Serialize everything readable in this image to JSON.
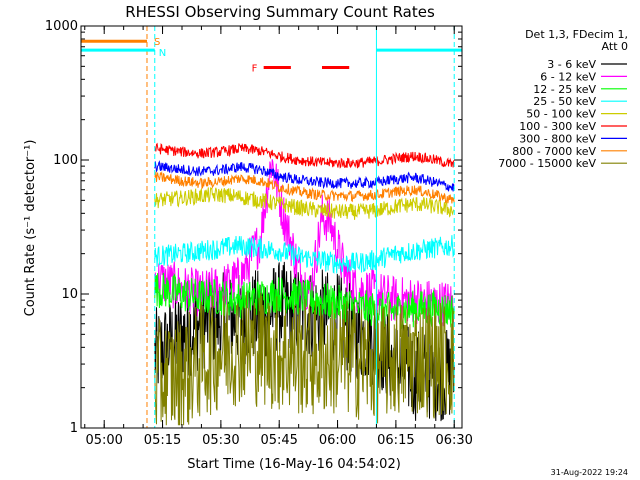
{
  "chart_data": {
    "type": "line",
    "title": "RHESSI Observing Summary Count Rates",
    "xlabel": "Start Time (16-May-16 04:54:02)",
    "ylabel": "Count Rate (s⁻¹ detector⁻¹)",
    "y_scale": "log",
    "ylim": [
      1,
      1000
    ],
    "xlim": [
      "04:54:02",
      "06:32:00"
    ],
    "y_ticks": [
      "1",
      "10",
      "100",
      "1000"
    ],
    "x_ticks": [
      "05:00",
      "05:15",
      "05:30",
      "05:45",
      "06:00",
      "06:15",
      "06:30"
    ],
    "legend_title": "Det 1,3, FDecim 1,\n Att 0",
    "legend_position": "right",
    "data_start": "05:13:00",
    "data_end": "06:30:00",
    "series": [
      {
        "name": "3 - 6 keV",
        "color": "#000000",
        "x": [
          "05:13",
          "05:20",
          "05:25",
          "05:30",
          "05:35",
          "05:40",
          "05:45",
          "05:50",
          "05:55",
          "06:00",
          "06:05",
          "06:10",
          "06:15",
          "06:20",
          "06:25",
          "06:30"
        ],
        "y": [
          3.5,
          5,
          6,
          6.5,
          6.5,
          7,
          8,
          7.5,
          7,
          6.5,
          5,
          4.5,
          3,
          2.5,
          2.5,
          2.5
        ]
      },
      {
        "name": "6 - 12 keV",
        "color": "#ff00ff",
        "x": [
          "05:13",
          "05:20",
          "05:25",
          "05:30",
          "05:35",
          "05:40",
          "05:43",
          "05:46",
          "05:50",
          "05:53",
          "05:56",
          "05:58",
          "06:02",
          "06:05",
          "06:10",
          "06:15",
          "06:20",
          "06:25",
          "06:30"
        ],
        "y": [
          13,
          11,
          10,
          11,
          13,
          25,
          100,
          40,
          15,
          10,
          38,
          35,
          14,
          11,
          10,
          9,
          9,
          8.5,
          8.5
        ]
      },
      {
        "name": "12 - 25 keV",
        "color": "#00ff00",
        "x": [
          "05:13",
          "05:20",
          "05:25",
          "05:30",
          "05:35",
          "05:40",
          "05:45",
          "05:50",
          "05:55",
          "06:00",
          "06:05",
          "06:10",
          "06:15",
          "06:20",
          "06:25",
          "06:30"
        ],
        "y": [
          11,
          10,
          9.5,
          9.5,
          9,
          9.5,
          10,
          9.5,
          9,
          8.5,
          8,
          7.5,
          7.5,
          7.8,
          7.8,
          7.5
        ]
      },
      {
        "name": "25 - 50 keV",
        "color": "#00ffff",
        "x": [
          "05:13",
          "05:20",
          "05:25",
          "05:30",
          "05:35",
          "05:40",
          "05:45",
          "05:50",
          "05:55",
          "06:00",
          "06:05",
          "06:10",
          "06:15",
          "06:20",
          "06:25",
          "06:30"
        ],
        "y": [
          19,
          20,
          21,
          22,
          23,
          22,
          21,
          19,
          18,
          17,
          17,
          18,
          20,
          21,
          22,
          23
        ]
      },
      {
        "name": "50 - 100 keV",
        "color": "#cccc00",
        "x": [
          "05:13",
          "05:20",
          "05:25",
          "05:30",
          "05:35",
          "05:40",
          "05:45",
          "05:50",
          "05:55",
          "06:00",
          "06:05",
          "06:10",
          "06:15",
          "06:20",
          "06:25",
          "06:30"
        ],
        "y": [
          50,
          52,
          54,
          55,
          53,
          50,
          47,
          44,
          42,
          41,
          41,
          42,
          45,
          47,
          45,
          42
        ]
      },
      {
        "name": "100 - 300 keV",
        "color": "#ff0000",
        "x": [
          "05:13",
          "05:20",
          "05:25",
          "05:30",
          "05:35",
          "05:40",
          "05:45",
          "05:50",
          "05:55",
          "06:00",
          "06:05",
          "06:10",
          "06:15",
          "06:20",
          "06:25",
          "06:30"
        ],
        "y": [
          122,
          115,
          112,
          115,
          122,
          117,
          107,
          100,
          96,
          95,
          95,
          98,
          103,
          107,
          100,
          92
        ]
      },
      {
        "name": "300 - 800 keV",
        "color": "#0000ff",
        "x": [
          "05:13",
          "05:20",
          "05:25",
          "05:30",
          "05:35",
          "05:40",
          "05:45",
          "05:50",
          "05:55",
          "06:00",
          "06:05",
          "06:10",
          "06:15",
          "06:20",
          "06:25",
          "06:30"
        ],
        "y": [
          90,
          85,
          82,
          84,
          89,
          85,
          76,
          71,
          68,
          67,
          67,
          68,
          72,
          74,
          68,
          62
        ]
      },
      {
        "name": "800 - 7000 keV",
        "color": "#ff8000",
        "x": [
          "05:13",
          "05:20",
          "05:25",
          "05:30",
          "05:35",
          "05:40",
          "05:45",
          "05:50",
          "05:55",
          "06:00",
          "06:05",
          "06:10",
          "06:15",
          "06:20",
          "06:25",
          "06:30"
        ],
        "y": [
          75,
          70,
          67,
          69,
          73,
          70,
          63,
          58,
          55,
          54,
          54,
          55,
          58,
          60,
          55,
          50
        ]
      },
      {
        "name": "7000 - 15000 keV",
        "color": "#808000",
        "x": [
          "05:13",
          "05:20",
          "05:25",
          "05:30",
          "05:35",
          "05:40",
          "05:45",
          "05:50",
          "05:55",
          "06:00",
          "06:05",
          "06:10",
          "06:15",
          "06:20",
          "06:25",
          "06:30"
        ],
        "y": [
          2.3,
          2.5,
          3.2,
          3.8,
          4.2,
          4.0,
          3.6,
          3.4,
          3.3,
          3.4,
          3.2,
          3.0,
          3.3,
          3.4,
          3.3,
          3.2
        ]
      }
    ],
    "flag_bars": [
      {
        "label": "S",
        "color": "#ff8000",
        "start": "04:54:02",
        "end": "05:11:00",
        "y": 770
      },
      {
        "label": "N",
        "color": "#00ffff",
        "start": "04:54:02",
        "end": "05:13:00",
        "y": 660
      },
      {
        "label": "N",
        "color": "#00ffff",
        "start": "06:10:00",
        "end": "06:32:00",
        "y": 660
      },
      {
        "label": "F",
        "color": "#ff0000",
        "start": "05:41:00",
        "end": "05:48:00",
        "y": 490
      },
      {
        "label": "F",
        "color": "#ff0000",
        "start": "05:56:00",
        "end": "06:03:00",
        "y": 490
      }
    ],
    "vertical_markers": [
      {
        "time": "04:54:02",
        "color": "#00ffff",
        "style": "solid"
      },
      {
        "time": "05:11:00",
        "color": "#ff8000",
        "style": "dashed"
      },
      {
        "time": "05:13:00",
        "color": "#00ffff",
        "style": "dashed"
      },
      {
        "time": "06:10:00",
        "color": "#00ffff",
        "style": "solid"
      },
      {
        "time": "06:30:00",
        "color": "#00ffff",
        "style": "dashed"
      }
    ]
  },
  "footer": {
    "timestamp": "31-Aug-2022 19:24"
  }
}
